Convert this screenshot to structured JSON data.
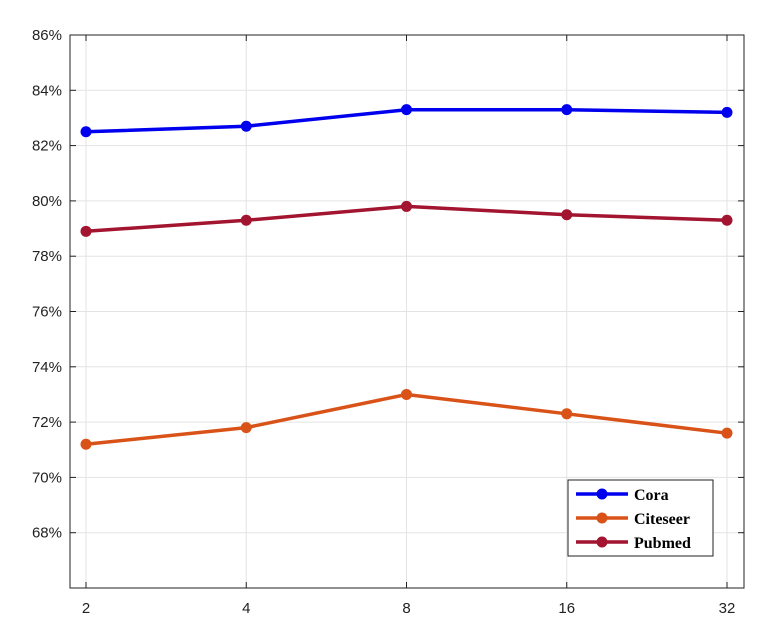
{
  "chart_data": {
    "type": "line",
    "title": "",
    "xlabel": "",
    "ylabel": "",
    "x": [
      2,
      4,
      8,
      16,
      32
    ],
    "x_tick_labels": [
      "2",
      "4",
      "8",
      "16",
      "32"
    ],
    "ylim": [
      66,
      86
    ],
    "y_ticks": [
      68,
      70,
      72,
      74,
      76,
      78,
      80,
      82,
      84,
      86
    ],
    "y_tick_labels": [
      "68%",
      "70%",
      "72%",
      "74%",
      "76%",
      "78%",
      "80%",
      "82%",
      "84%",
      "86%"
    ],
    "grid": true,
    "legend_position": "bottom-right",
    "series": [
      {
        "name": "Cora",
        "color": "#0000ee",
        "values": [
          82.5,
          82.7,
          83.3,
          83.3,
          83.2
        ]
      },
      {
        "name": "Citeseer",
        "color": "#d95319",
        "values": [
          71.2,
          71.8,
          73.0,
          72.3,
          71.6
        ]
      },
      {
        "name": "Pubmed",
        "color": "#a2142f",
        "values": [
          78.9,
          79.3,
          79.8,
          79.5,
          79.3
        ]
      }
    ]
  }
}
